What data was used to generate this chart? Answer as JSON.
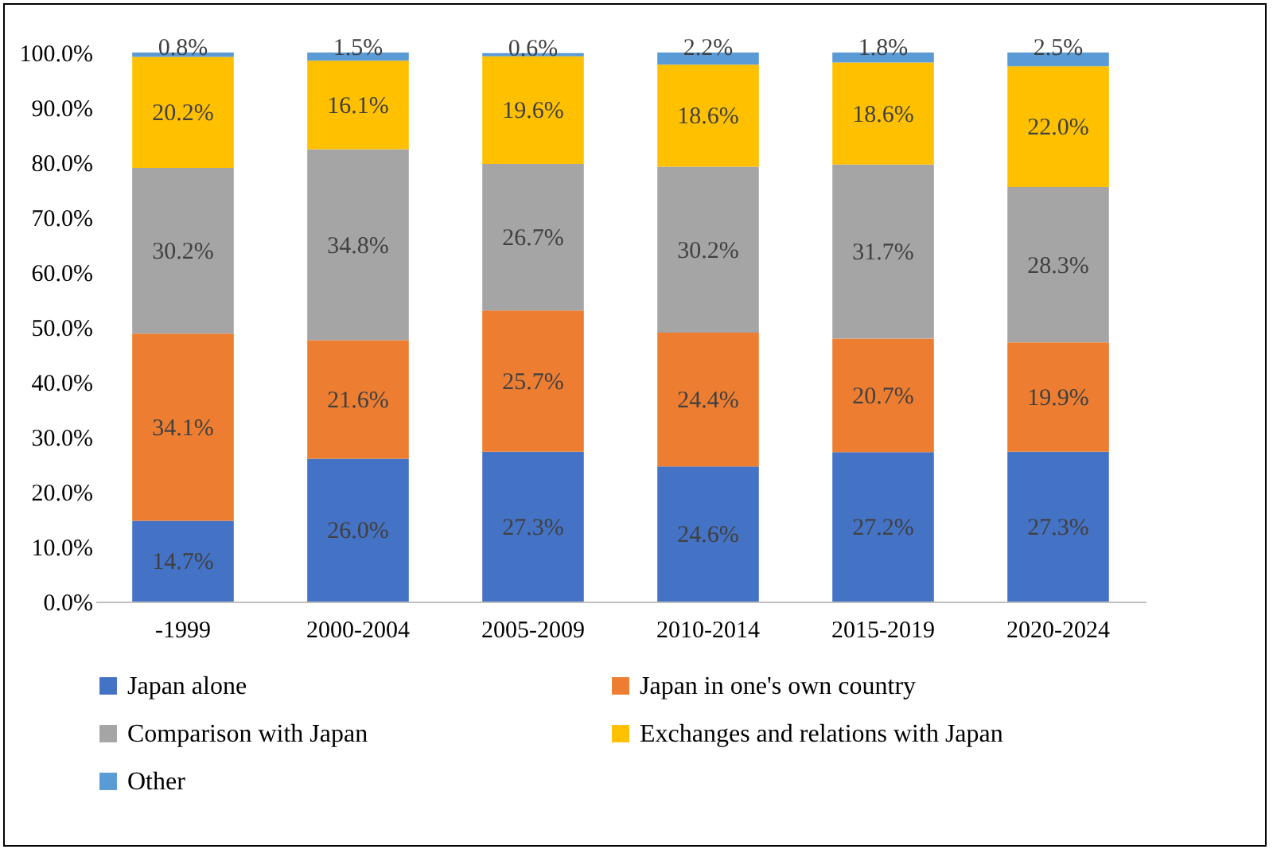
{
  "chart_data": {
    "type": "bar",
    "stacked": true,
    "categories": [
      "-1999",
      "2000-2004",
      "2005-2009",
      "2010-2014",
      "2015-2019",
      "2020-2024"
    ],
    "series": [
      {
        "name": "Japan alone",
        "color": "#4472c4",
        "values": [
          14.7,
          26.0,
          27.3,
          24.6,
          27.2,
          27.3
        ],
        "value_labels": [
          "14.7%",
          "26.0%",
          "27.3%",
          "24.6%",
          "27.2%",
          "27.3%"
        ]
      },
      {
        "name": "Japan in one's own country",
        "color": "#ed7d31",
        "values": [
          34.1,
          21.6,
          25.7,
          24.4,
          20.7,
          19.9
        ],
        "value_labels": [
          "34.1%",
          "21.6%",
          "25.7%",
          "24.4%",
          "20.7%",
          "19.9%"
        ]
      },
      {
        "name": "Comparison with Japan",
        "color": "#a5a5a5",
        "values": [
          30.2,
          34.8,
          26.7,
          30.2,
          31.7,
          28.3
        ],
        "value_labels": [
          "30.2%",
          "34.8%",
          "26.7%",
          "30.2%",
          "31.7%",
          "28.3%"
        ]
      },
      {
        "name": "Exchanges and relations with Japan",
        "color": "#ffc000",
        "values": [
          20.2,
          16.1,
          19.6,
          18.6,
          18.6,
          22.0
        ],
        "value_labels": [
          "20.2%",
          "16.1%",
          "19.6%",
          "18.6%",
          "18.6%",
          "22.0%"
        ]
      },
      {
        "name": "Other",
        "color": "#5b9bd5",
        "values": [
          0.8,
          1.5,
          0.6,
          2.2,
          1.8,
          2.5
        ],
        "value_labels": [
          "0.8%",
          "1.5%",
          "0.6%",
          "2.2%",
          "1.8%",
          "2.5%"
        ]
      }
    ],
    "ylim": [
      0,
      100
    ],
    "yticks": [
      {
        "value": 0,
        "label": "0.0%"
      },
      {
        "value": 10,
        "label": "10.0%"
      },
      {
        "value": 20,
        "label": "20.0%"
      },
      {
        "value": 30,
        "label": "30.0%"
      },
      {
        "value": 40,
        "label": "40.0%"
      },
      {
        "value": 50,
        "label": "50.0%"
      },
      {
        "value": 60,
        "label": "60.0%"
      },
      {
        "value": 70,
        "label": "70.0%"
      },
      {
        "value": 80,
        "label": "80.0%"
      },
      {
        "value": 90,
        "label": "90.0%"
      },
      {
        "value": 100,
        "label": "100.0%"
      }
    ],
    "grid": false,
    "legend": "bottom"
  }
}
